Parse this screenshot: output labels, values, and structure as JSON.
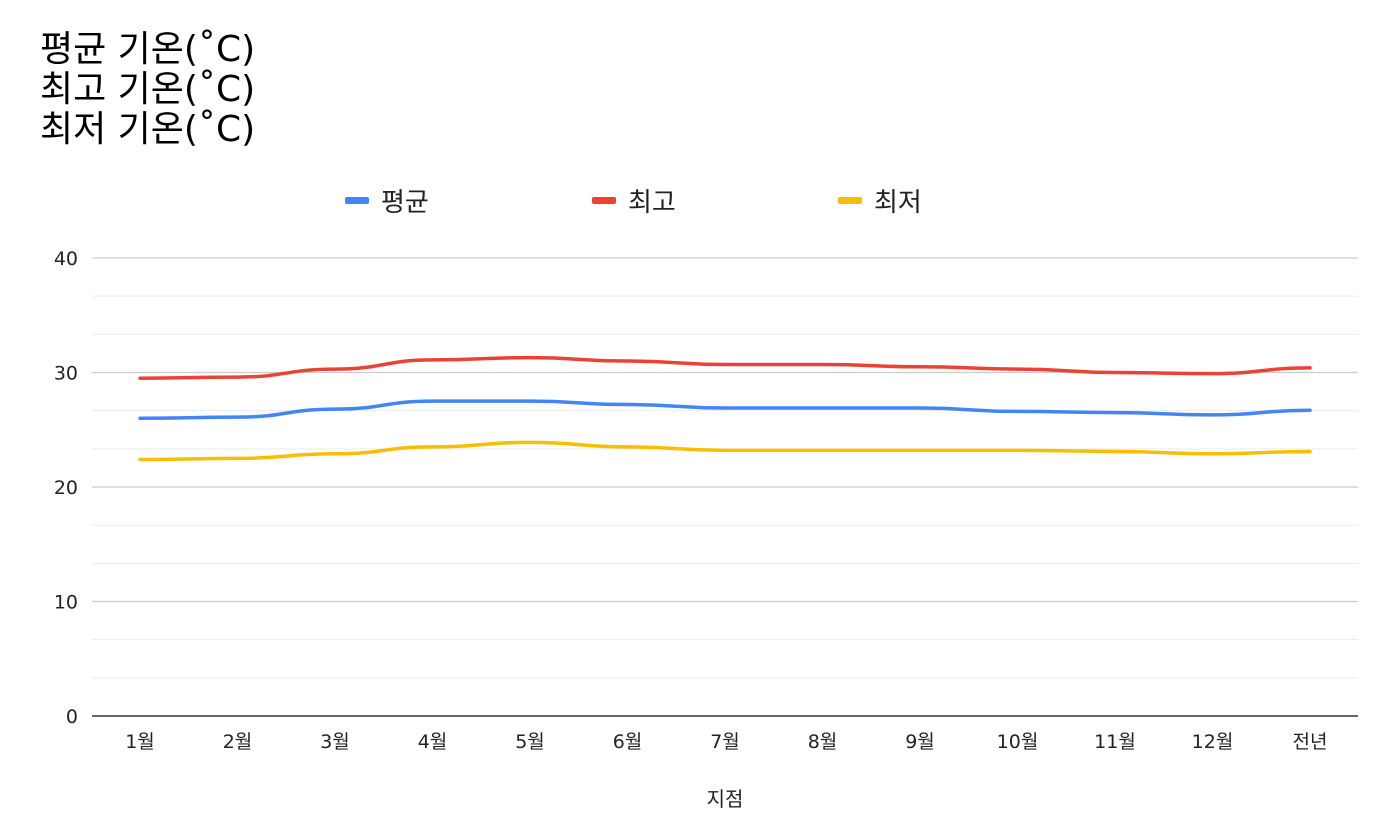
{
  "title_lines": [
    "평균 기온(˚C)",
    "최고 기온(˚C)",
    "최저 기온(˚C)"
  ],
  "chart_data": {
    "type": "line",
    "categories": [
      "1월",
      "2월",
      "3월",
      "4월",
      "5월",
      "6월",
      "7월",
      "8월",
      "9월",
      "10월",
      "11월",
      "12월",
      "전년"
    ],
    "series": [
      {
        "name": "평균",
        "color": "#4285f4",
        "values": [
          26.0,
          26.1,
          26.8,
          27.5,
          27.5,
          27.2,
          26.9,
          26.9,
          26.9,
          26.6,
          26.5,
          26.3,
          26.7
        ]
      },
      {
        "name": "최고",
        "color": "#ea4335",
        "values": [
          29.5,
          29.6,
          30.3,
          31.1,
          31.3,
          31.0,
          30.7,
          30.7,
          30.5,
          30.3,
          30.0,
          29.9,
          30.4
        ]
      },
      {
        "name": "최저",
        "color": "#fbbc04",
        "values": [
          22.4,
          22.5,
          22.9,
          23.5,
          23.9,
          23.5,
          23.2,
          23.2,
          23.2,
          23.2,
          23.1,
          22.9,
          23.1
        ]
      }
    ],
    "xlabel": "지점",
    "ylabel": "",
    "ylim": [
      0,
      40
    ],
    "yticks": [
      0,
      10,
      20,
      30,
      40
    ],
    "minor_step": 3.33,
    "grid": true,
    "legend_position": "top"
  }
}
